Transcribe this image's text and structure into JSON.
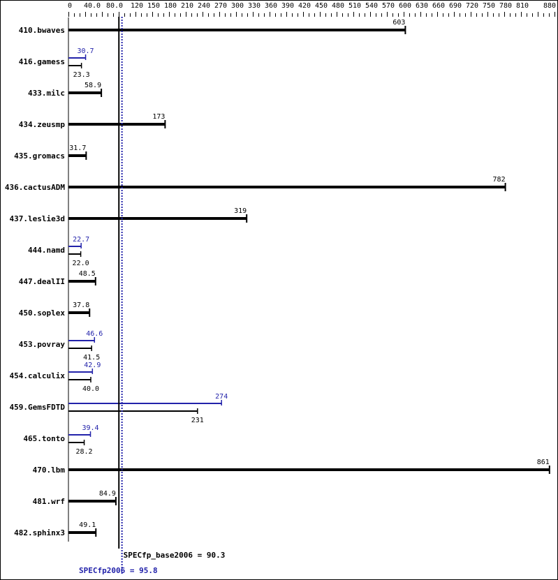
{
  "chart_data": {
    "type": "bar",
    "orientation": "horizontal",
    "title": "",
    "xlim": [
      0,
      880
    ],
    "x_ticks": [
      "0",
      "40.0",
      "80.0",
      "120",
      "150",
      "180",
      "210",
      "240",
      "270",
      "300",
      "330",
      "360",
      "390",
      "420",
      "450",
      "480",
      "510",
      "540",
      "570",
      "600",
      "630",
      "660",
      "690",
      "720",
      "750",
      "780",
      "810",
      "880"
    ],
    "x_tick_values": [
      0,
      40,
      80,
      120,
      150,
      180,
      210,
      240,
      270,
      300,
      330,
      360,
      390,
      420,
      450,
      480,
      510,
      540,
      570,
      600,
      630,
      660,
      690,
      720,
      750,
      780,
      810,
      880
    ],
    "colors": {
      "base": "#000000",
      "peak": "#2222aa"
    },
    "categories": [
      "410.bwaves",
      "416.gamess",
      "433.milc",
      "434.zeusmp",
      "435.gromacs",
      "436.cactusADM",
      "437.leslie3d",
      "444.namd",
      "447.dealII",
      "450.soplex",
      "453.povray",
      "454.calculix",
      "459.GemsFDTD",
      "465.tonto",
      "470.lbm",
      "481.wrf",
      "482.sphinx3"
    ],
    "series": [
      {
        "name": "SPECfp_base2006",
        "values": [
          603,
          23.3,
          58.9,
          173,
          31.7,
          782,
          319,
          22.0,
          48.5,
          37.8,
          41.5,
          40.0,
          231,
          28.2,
          861,
          84.9,
          49.1
        ]
      },
      {
        "name": "SPECfp2006",
        "values": [
          null,
          30.7,
          null,
          null,
          null,
          null,
          null,
          22.7,
          null,
          null,
          46.6,
          42.9,
          274,
          39.4,
          null,
          null,
          null
        ]
      }
    ],
    "value_labels_base": [
      "603",
      "23.3",
      "58.9",
      "173",
      "31.7",
      "782",
      "319",
      "22.0",
      "48.5",
      "37.8",
      "41.5",
      "40.0",
      "231",
      "28.2",
      "861",
      "84.9",
      "49.1"
    ],
    "value_labels_peak": [
      null,
      "30.7",
      null,
      null,
      null,
      null,
      null,
      "22.7",
      null,
      null,
      "46.6",
      "42.9",
      "274",
      "39.4",
      null,
      null,
      null
    ],
    "reference_lines": [
      {
        "label": "SPECfp_base2006 = 90.3",
        "value": 90.3,
        "style": "solid",
        "color": "#000000"
      },
      {
        "label": "SPECfp2006 = 95.8",
        "value": 95.8,
        "style": "dotted",
        "color": "#2222aa"
      }
    ]
  }
}
